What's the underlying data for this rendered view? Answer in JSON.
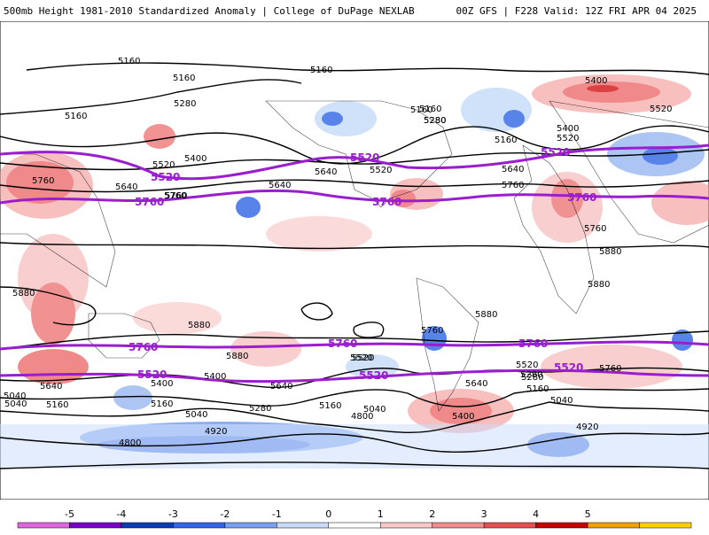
{
  "header": {
    "left_title": "500mb Height 1981-2010 Standardized Anomaly | College of DuPage NEXLAB",
    "right_title": "00Z GFS | F228 Valid: 12Z FRI APR 04 2025"
  },
  "contour_labels": {
    "black": [
      "5160",
      "5160",
      "5160",
      "5160",
      "5280",
      "5160",
      "5280",
      "5400",
      "5520",
      "5160",
      "5400",
      "5520",
      "5520",
      "5400",
      "5520",
      "5760",
      "5640",
      "5760",
      "5640",
      "5640",
      "5760",
      "5640",
      "5760",
      "5880",
      "5880",
      "5880",
      "5880",
      "5880",
      "5760",
      "5880",
      "5520",
      "5400",
      "5640",
      "5280",
      "5160",
      "5040",
      "5160",
      "4800",
      "5040",
      "4920",
      "4800",
      "5040",
      "5160",
      "5280",
      "5400",
      "5640",
      "5520",
      "5280",
      "5160",
      "5040",
      "4920",
      "5040",
      "5760",
      "5400",
      "5520",
      "5640",
      "5760",
      "5160",
      "5280"
    ],
    "purple": [
      "5520",
      "5520",
      "5520",
      "5760",
      "5760",
      "5760",
      "5760",
      "5760",
      "5760",
      "5520",
      "5520",
      "5520"
    ]
  },
  "colorbar": {
    "ticks": [
      "-5",
      "-4",
      "-3",
      "-2",
      "-1",
      "0",
      "1",
      "2",
      "3",
      "4",
      "5"
    ],
    "colors": [
      "#e066e0",
      "#7a00c8",
      "#0a3cb4",
      "#3264e6",
      "#78a0f0",
      "#c8dcfa",
      "#ffffff",
      "#fac8c8",
      "#f08c8c",
      "#e65050",
      "#c80000",
      "#f0a000",
      "#ffd000"
    ]
  }
}
